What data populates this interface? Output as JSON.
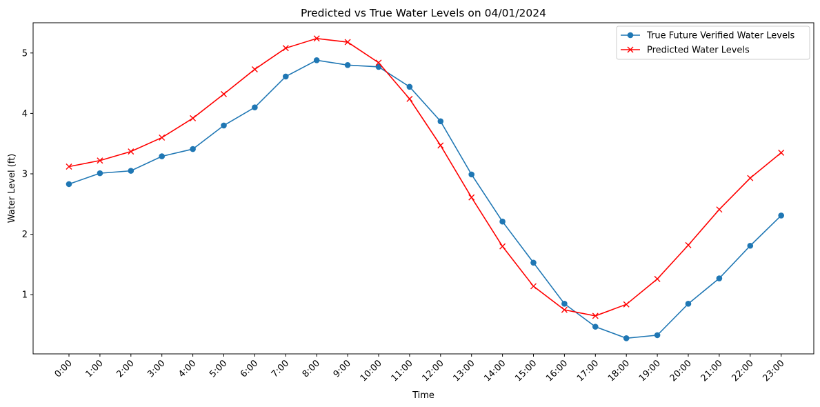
{
  "chart_data": {
    "type": "line",
    "title": "Predicted vs True Water Levels on 04/01/2024",
    "xlabel": "Time",
    "ylabel": "Water Level (ft)",
    "categories": [
      "0:00",
      "1:00",
      "2:00",
      "3:00",
      "4:00",
      "5:00",
      "6:00",
      "7:00",
      "8:00",
      "9:00",
      "10:00",
      "11:00",
      "12:00",
      "13:00",
      "14:00",
      "15:00",
      "16:00",
      "17:00",
      "18:00",
      "19:00",
      "20:00",
      "21:00",
      "22:00",
      "23:00"
    ],
    "yticks": [
      1,
      2,
      3,
      4,
      5
    ],
    "ylim": [
      0.15,
      5.5
    ],
    "grid": false,
    "legend_position": "top-right",
    "series": [
      {
        "name": "True Future Verified Water Levels",
        "color": "#1f77b4",
        "marker": "circle",
        "values": [
          2.83,
          3.01,
          3.05,
          3.29,
          3.41,
          3.8,
          4.1,
          4.61,
          4.88,
          4.8,
          4.77,
          4.44,
          3.87,
          2.99,
          2.21,
          1.53,
          0.85,
          0.47,
          0.28,
          0.33,
          0.85,
          1.27,
          1.81,
          2.31
        ]
      },
      {
        "name": "Predicted Water Levels",
        "color": "#ff0000",
        "marker": "x",
        "values": [
          3.12,
          3.22,
          3.37,
          3.6,
          3.92,
          4.32,
          4.73,
          5.08,
          5.24,
          5.18,
          4.84,
          4.24,
          3.47,
          2.61,
          1.8,
          1.14,
          0.75,
          0.65,
          0.84,
          1.26,
          1.82,
          2.41,
          2.93,
          3.35
        ]
      }
    ]
  }
}
